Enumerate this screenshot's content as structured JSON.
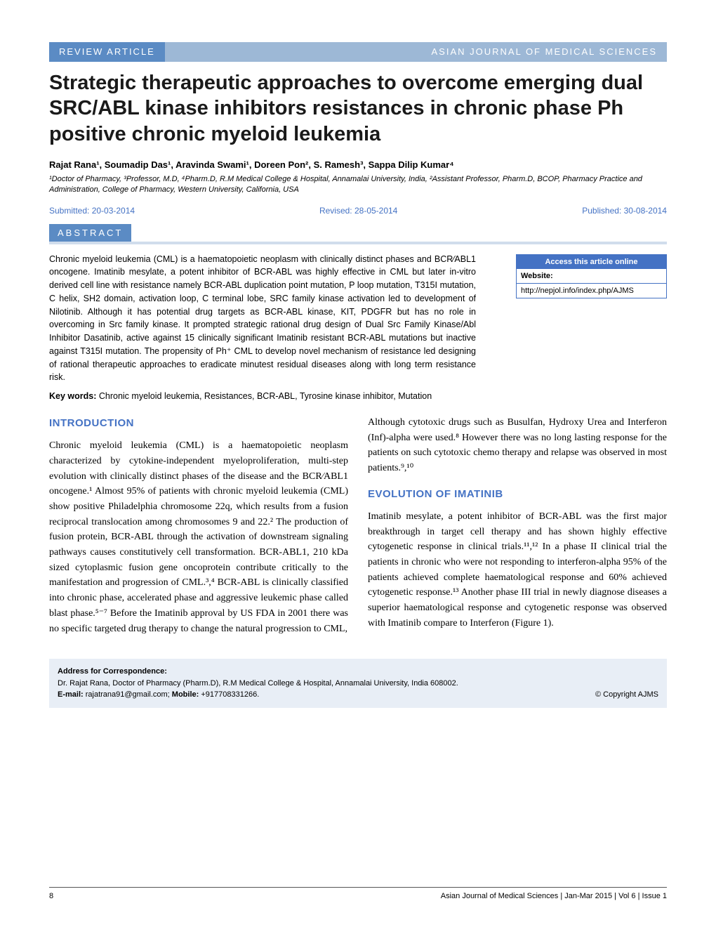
{
  "header": {
    "left": "REVIEW ARTICLE",
    "right": "ASIAN JOURNAL OF MEDICAL SCIENCES"
  },
  "title": "Strategic therapeutic approaches to overcome emerging dual SRC/ABL kinase inhibitors resistances in chronic phase Ph positive chronic myeloid leukemia",
  "authors": "Rajat Rana¹, Soumadip Das¹, Aravinda Swami¹, Doreen Pon², S. Ramesh³, Sappa Dilip Kumar⁴",
  "affiliations": "¹Doctor of Pharmacy, ³Professor, M.D, ⁴Pharm.D, R.M Medical College & Hospital, Annamalai University, India, ²Assistant Professor, Pharm.D, BCOP, Pharmacy Practice and Administration, College of Pharmacy, Western University, California, USA",
  "dates": {
    "submitted": "Submitted: 20-03-2014",
    "revised": "Revised: 28-05-2014",
    "published": "Published: 30-08-2014"
  },
  "abstract": {
    "label": "ABSTRACT",
    "text": "Chronic myeloid leukemia (CML) is a haematopoietic neoplasm with clinically distinct phases and BCR⁄ABL1 oncogene. Imatinib mesylate, a potent inhibitor of BCR-ABL was highly effective in CML but later in-vitro derived cell line with resistance namely BCR-ABL duplication point mutation, P loop mutation, T315I mutation, C helix, SH2 domain, activation loop, C terminal lobe, SRC family kinase activation led to development of Nilotinib. Although it has potential drug targets as BCR-ABL kinase, KIT, PDGFR but has no role in overcoming in Src family kinase. It prompted strategic rational drug design of Dual Src Family Kinase/Abl Inhibitor Dasatinib, active against 15 clinically significant Imatinib resistant BCR-ABL mutations but inactive against T315I mutation. The propensity of Ph⁺ CML to develop novel mechanism of resistance led designing of rational therapeutic approaches to eradicate minutest residual diseases along with long term resistance risk.",
    "keywords_label": "Key words:",
    "keywords_text": " Chronic myeloid leukemia, Resistances, BCR-ABL, Tyrosine kinase inhibitor, Mutation"
  },
  "access": {
    "title": "Access this article online",
    "website_label": "Website:",
    "website_url": "http://nepjol.info/index.php/AJMS"
  },
  "sections": {
    "intro_heading": "INTRODUCTION",
    "intro_p1": "Chronic myeloid leukemia (CML) is a haematopoietic neoplasm characterized by cytokine-independent myeloproliferation, multi-step evolution with clinically distinct phases of the disease and the BCR⁄ABL1 oncogene.¹ Almost 95% of patients with chronic myeloid leukemia (CML) show positive Philadelphia chromosome 22q, which results from a fusion reciprocal translocation among chromosomes 9 and 22.² The production of fusion protein, BCR-ABL through the activation of downstream signaling pathways causes constitutively cell transformation. BCR-ABL1, 210 kDa sized cytoplasmic fusion gene oncoprotein contribute critically to the manifestation and progression of CML.³,⁴ BCR-ABL is clinically classified into chronic phase, accelerated phase and aggressive leukemic phase called blast phase.⁵⁻⁷ Before the Imatinib approval by US FDA in 2001 there was no specific targeted drug therapy to change the natural progression to CML,",
    "col2_p1": "Although cytotoxic drugs such as Busulfan, Hydroxy Urea and Interferon (Inf)-alpha were used.⁸ However there was no long lasting response for the patients on such cytotoxic chemo therapy and relapse was observed in most patients.⁹,¹⁰",
    "evolution_heading": "EVOLUTION OF IMATINIB",
    "evolution_p1": "Imatinib mesylate, a potent inhibitor of BCR-ABL was the first major breakthrough in target cell therapy and has shown highly effective cytogenetic response in clinical trials.¹¹,¹² In a phase II clinical trial the patients in chronic who were not responding to interferon-alpha 95% of the patients achieved complete haematological response and 60% achieved cytogenetic response.¹³ Another phase III trial in newly diagnose diseases a superior haematological response and cytogenetic response was observed with Imatinib compare to Interferon (Figure 1)."
  },
  "correspondence": {
    "label": "Address for Correspondence:",
    "text": "Dr. Rajat Rana, Doctor of Pharmacy (Pharm.D), R.M Medical College & Hospital, Annamalai University, India 608002.",
    "email_label": "E-mail:",
    "email": " rajatrana91@gmail.com; ",
    "mobile_label": "Mobile:",
    "mobile": " +917708331266.",
    "copyright": "© Copyright AJMS"
  },
  "footer": {
    "page": "8",
    "journal": "Asian Journal of Medical Sciences | Jan-Mar 2015 | Vol 6 | Issue 1"
  },
  "colors": {
    "primary_blue": "#4472c4",
    "header_blue": "#5b8bc4",
    "header_light": "#9db8d6",
    "light_blue_bg": "#e8eef6",
    "bar_blue": "#d0ddec"
  }
}
